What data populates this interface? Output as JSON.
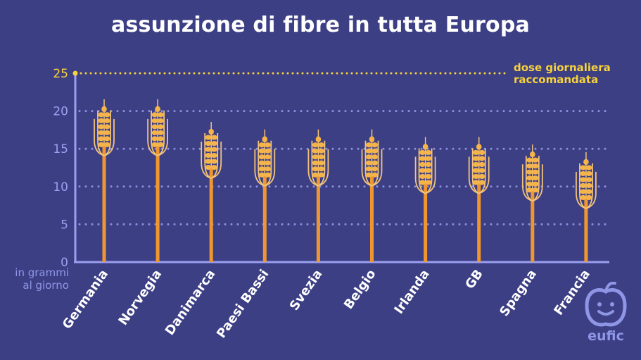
{
  "chart_data": {
    "type": "bar",
    "title": "assunzione di fibre in tutta Europa",
    "ylabel": "in grammi al giorno",
    "ylabel_lines": [
      "in grammi",
      "al giorno"
    ],
    "ylim": [
      0,
      25
    ],
    "yticks": [
      0,
      5,
      10,
      15,
      20,
      25
    ],
    "categories": [
      "Germania",
      "Norvegia",
      "Danimarca",
      "Paesi Bassi",
      "Svezia",
      "Belgio",
      "Irlanda",
      "GB",
      "Spagna",
      "Francia"
    ],
    "values": [
      21,
      21,
      18,
      17,
      17,
      17,
      16,
      16,
      15,
      14
    ],
    "reference_line": {
      "value": 25,
      "label_lines": [
        "dose giornaliera",
        "raccomandata"
      ]
    },
    "grid": "dotted horizontal",
    "colors": {
      "background": "#3d3f84",
      "bar": "#f0962f",
      "grain": "#f5b44a",
      "awn": "#f2c37a",
      "axis": "#9aa0f0",
      "reference": "#f6d23c",
      "text": "#ffffff"
    }
  },
  "logo": {
    "text": "eufic"
  }
}
